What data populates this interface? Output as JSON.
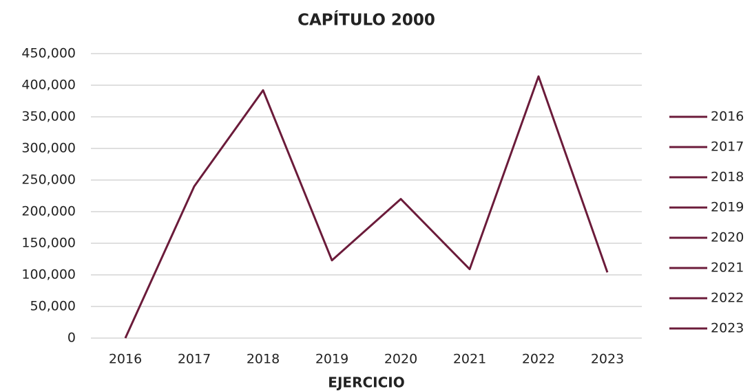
{
  "chart_data": {
    "type": "line",
    "title": "CAPÍTULO 2000",
    "x_label": "EJERCICIO",
    "categories": [
      "2016",
      "2017",
      "2018",
      "2019",
      "2020",
      "2021",
      "2022",
      "2023"
    ],
    "series": [
      {
        "color": "#6b1b3a",
        "values": [
          0,
          240000,
          392000,
          123000,
          220000,
          109000,
          414000,
          104000
        ]
      }
    ],
    "ylim": [
      0,
      450000
    ],
    "yticks": [
      0,
      {
        "value": 50000,
        "label": "50,000"
      },
      {
        "value": 100000,
        "label": "100,000"
      },
      {
        "value": 150000,
        "label": "150,000"
      },
      {
        "value": 200000,
        "label": "200,000"
      },
      {
        "value": 250000,
        "label": "250,000"
      },
      {
        "value": 300000,
        "label": "300,000"
      },
      {
        "value": 350000,
        "label": "350,000"
      },
      {
        "value": 400000,
        "label": "400,000"
      },
      {
        "value": 450000,
        "label": "450,000"
      }
    ],
    "grid": true,
    "legend": "right"
  }
}
